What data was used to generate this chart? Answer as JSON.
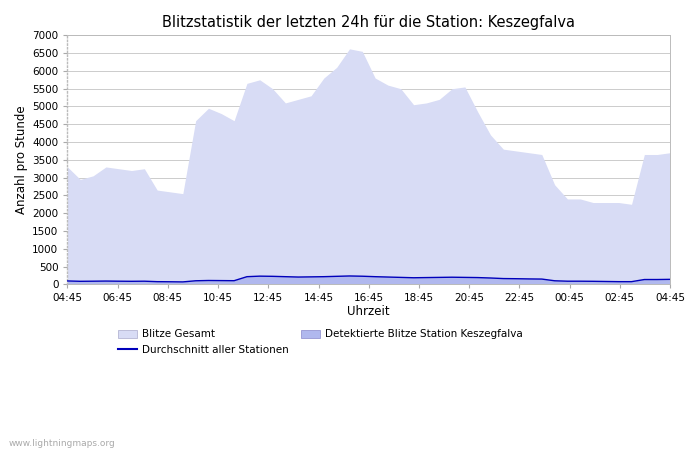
{
  "title": "Blitzstatistik der letzten 24h für die Station: Keszegfalva",
  "xlabel": "Uhrzeit",
  "ylabel": "Anzahl pro Stunde",
  "background_color": "#ffffff",
  "plot_bg_color": "#ffffff",
  "grid_color": "#cccccc",
  "x_labels": [
    "04:45",
    "06:45",
    "08:45",
    "10:45",
    "12:45",
    "14:45",
    "16:45",
    "18:45",
    "20:45",
    "22:45",
    "00:45",
    "02:45",
    "04:45"
  ],
  "ylim": [
    0,
    7000
  ],
  "yticks": [
    0,
    500,
    1000,
    1500,
    2000,
    2500,
    3000,
    3500,
    4000,
    4500,
    5000,
    5500,
    6000,
    6500,
    7000
  ],
  "blitze_gesamt": [
    3300,
    2950,
    3050,
    3300,
    3250,
    3200,
    3250,
    2650,
    2600,
    2550,
    4600,
    4950,
    4800,
    4600,
    5650,
    5750,
    5500,
    5100,
    5200,
    5300,
    5800,
    6100,
    6620,
    6550,
    5800,
    5600,
    5500,
    5050,
    5100,
    5200,
    5500,
    5550,
    4850,
    4200,
    3800,
    3750,
    3700,
    3650,
    2800,
    2400,
    2400,
    2300,
    2300,
    2300,
    2250,
    3650,
    3650,
    3700
  ],
  "detektierte_blitze": [
    100,
    90,
    95,
    100,
    95,
    90,
    95,
    80,
    75,
    70,
    110,
    120,
    115,
    110,
    230,
    250,
    240,
    230,
    220,
    225,
    230,
    240,
    250,
    245,
    230,
    220,
    210,
    200,
    205,
    210,
    215,
    210,
    205,
    190,
    175,
    170,
    165,
    160,
    110,
    95,
    95,
    90,
    85,
    80,
    80,
    145,
    145,
    150
  ],
  "durchschnitt": [
    95,
    85,
    88,
    92,
    88,
    85,
    88,
    75,
    72,
    68,
    100,
    108,
    105,
    102,
    215,
    230,
    225,
    215,
    205,
    210,
    215,
    225,
    235,
    228,
    215,
    205,
    195,
    185,
    190,
    195,
    200,
    195,
    190,
    178,
    162,
    158,
    152,
    148,
    100,
    88,
    88,
    85,
    80,
    75,
    75,
    135,
    135,
    140
  ],
  "fill_gesamt_color": "#d8dcf5",
  "fill_detektierte_color": "#b0b8ee",
  "line_avg_color": "#0000bb",
  "watermark": "www.lightningmaps.org",
  "legend_blitze_gesamt": "Blitze Gesamt",
  "legend_durchschnitt": "Durchschnitt aller Stationen",
  "legend_detektierte": "Detektierte Blitze Station Keszegfalva"
}
